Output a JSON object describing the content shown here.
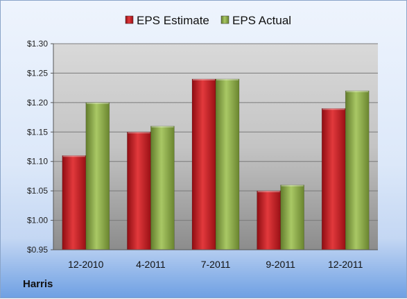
{
  "chart_data": {
    "type": "bar",
    "categories": [
      "12-2010",
      "4-2011",
      "7-2011",
      "9-2011",
      "12-2011"
    ],
    "series": [
      {
        "name": "EPS Estimate",
        "values": [
          1.11,
          1.15,
          1.24,
          1.05,
          1.19
        ],
        "color": "#c0161c"
      },
      {
        "name": "EPS Actual",
        "values": [
          1.2,
          1.16,
          1.24,
          1.06,
          1.22
        ],
        "color": "#8fb24a"
      }
    ],
    "ylim": [
      0.95,
      1.3
    ],
    "yticks": [
      0.95,
      1.0,
      1.05,
      1.1,
      1.15,
      1.2,
      1.25,
      1.3
    ],
    "ytick_labels": [
      "$0.95",
      "$1.00",
      "$1.05",
      "$1.10",
      "$1.15",
      "$1.20",
      "$1.25",
      "$1.30"
    ],
    "legend_position": "top",
    "grid": true
  },
  "footer": {
    "company": "Harris"
  }
}
